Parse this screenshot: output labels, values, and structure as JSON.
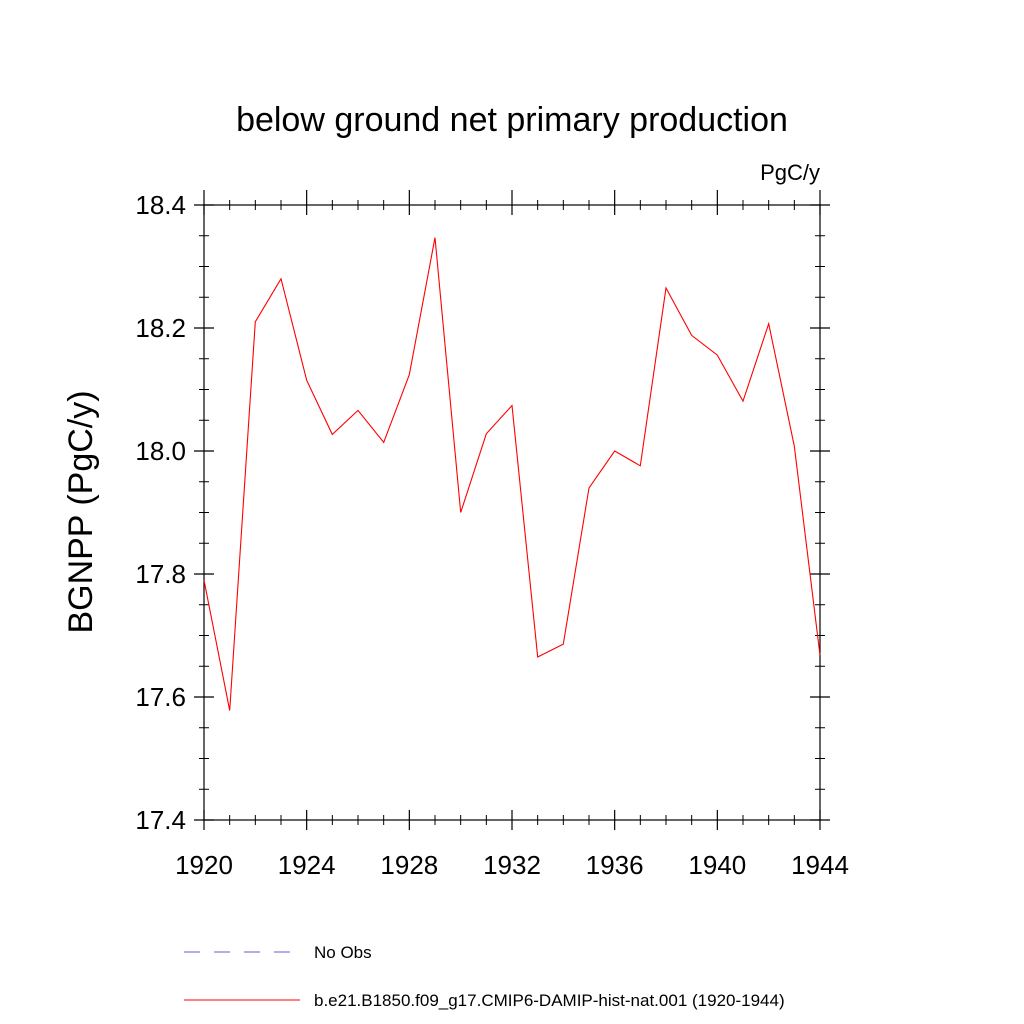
{
  "chart_data": {
    "type": "line",
    "title": "below ground net primary production",
    "units": "PgC/y",
    "ylabel": "BGNPP  (PgC/y)",
    "xlabel": "",
    "xlim": [
      1920,
      1944
    ],
    "ylim": [
      17.4,
      18.4
    ],
    "x_ticks": [
      1920,
      1924,
      1928,
      1932,
      1936,
      1940,
      1944
    ],
    "x_tick_labels": [
      "1920",
      "1924",
      "1928",
      "1932",
      "1936",
      "1940",
      "1944"
    ],
    "y_ticks": [
      17.4,
      17.6,
      17.8,
      18.0,
      18.2,
      18.4
    ],
    "y_tick_labels": [
      "17.4",
      "17.6",
      "17.8",
      "18.0",
      "18.2",
      "18.4"
    ],
    "grid": false,
    "legend_position": "bottom",
    "series": [
      {
        "name": "b.e21.B1850.f09_g17.CMIP6-DAMIP-hist-nat.001 (1920-1944)",
        "color": "#ff0000",
        "style": "solid",
        "x": [
          1920,
          1921,
          1922,
          1923,
          1924,
          1925,
          1926,
          1927,
          1928,
          1929,
          1930,
          1931,
          1932,
          1933,
          1934,
          1935,
          1936,
          1937,
          1938,
          1939,
          1940,
          1941,
          1942,
          1943,
          1944
        ],
        "y": [
          17.79,
          17.578,
          18.21,
          18.28,
          18.115,
          18.027,
          18.066,
          18.014,
          18.124,
          18.347,
          17.9,
          18.028,
          18.074,
          17.665,
          17.686,
          17.94,
          18.0,
          17.976,
          18.265,
          18.188,
          18.156,
          18.081,
          18.207,
          18.008,
          17.668
        ]
      }
    ],
    "legend": [
      {
        "label": "No Obs",
        "color": "#6a5acd",
        "style": "dashed"
      },
      {
        "label": "b.e21.B1850.f09_g17.CMIP6-DAMIP-hist-nat.001 (1920-1944)",
        "color": "#ff0000",
        "style": "solid"
      }
    ]
  }
}
